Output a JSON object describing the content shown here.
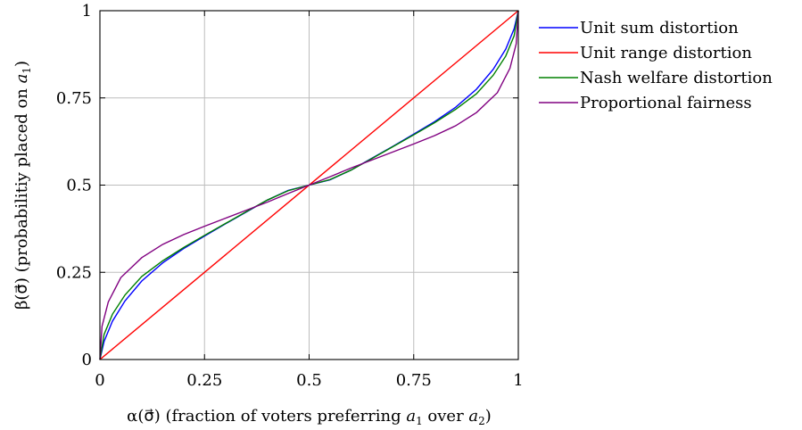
{
  "chart_data": {
    "type": "line",
    "xlabel": {
      "prefix": "α(σ⃗) (fraction of voters preferring ",
      "a1": "a",
      "a1_sub": "1",
      "middle": " over ",
      "a2": "a",
      "a2_sub": "2",
      "suffix": ")"
    },
    "ylabel": {
      "prefix": "β(σ⃗) (probabilitiy placed on ",
      "a1": "a",
      "a1_sub": "1",
      "suffix": ")"
    },
    "xlim": [
      0,
      1
    ],
    "ylim": [
      0,
      1
    ],
    "xticks": [
      0,
      0.25,
      0.5,
      0.75,
      1
    ],
    "yticks": [
      0,
      0.25,
      0.5,
      0.75,
      1
    ],
    "xtick_labels": [
      "0",
      "0.25",
      "0.5",
      "0.75",
      "1"
    ],
    "ytick_labels": [
      "0",
      "0.25",
      "0.5",
      "0.75",
      "1"
    ],
    "grid": true,
    "legend_position": "outside-top-right",
    "series": [
      {
        "name": "Unit sum distortion",
        "color": "#0000ff",
        "x": [
          0,
          0.01,
          0.03,
          0.06,
          0.1,
          0.15,
          0.2,
          0.25,
          0.3,
          0.35,
          0.4,
          0.45,
          0.5,
          0.55,
          0.6,
          0.65,
          0.7,
          0.75,
          0.8,
          0.85,
          0.9,
          0.94,
          0.97,
          0.99,
          1
        ],
        "y": [
          0,
          0.052,
          0.11,
          0.168,
          0.225,
          0.277,
          0.318,
          0.354,
          0.389,
          0.423,
          0.457,
          0.485,
          0.5,
          0.515,
          0.543,
          0.577,
          0.611,
          0.646,
          0.682,
          0.723,
          0.775,
          0.832,
          0.89,
          0.948,
          1
        ]
      },
      {
        "name": "Unit range distortion",
        "color": "#ff0000",
        "x": [
          0,
          1
        ],
        "y": [
          0,
          1
        ]
      },
      {
        "name": "Nash welfare distortion",
        "color": "#008000",
        "x": [
          0,
          0.01,
          0.03,
          0.06,
          0.1,
          0.15,
          0.2,
          0.25,
          0.3,
          0.35,
          0.4,
          0.45,
          0.5,
          0.55,
          0.6,
          0.65,
          0.7,
          0.75,
          0.8,
          0.85,
          0.9,
          0.94,
          0.97,
          0.99,
          1
        ],
        "y": [
          0,
          0.072,
          0.13,
          0.185,
          0.238,
          0.283,
          0.321,
          0.356,
          0.39,
          0.424,
          0.457,
          0.484,
          0.5,
          0.516,
          0.543,
          0.576,
          0.61,
          0.644,
          0.679,
          0.717,
          0.762,
          0.815,
          0.87,
          0.928,
          1
        ]
      },
      {
        "name": "Proportional fairness",
        "color": "#800080",
        "x": [
          0,
          0.005,
          0.02,
          0.05,
          0.1,
          0.15,
          0.2,
          0.25,
          0.3,
          0.35,
          0.4,
          0.45,
          0.5,
          0.55,
          0.6,
          0.65,
          0.7,
          0.75,
          0.8,
          0.85,
          0.9,
          0.95,
          0.98,
          0.995,
          1
        ],
        "y": [
          0,
          0.095,
          0.165,
          0.235,
          0.292,
          0.33,
          0.358,
          0.382,
          0.405,
          0.428,
          0.451,
          0.476,
          0.5,
          0.524,
          0.549,
          0.572,
          0.595,
          0.618,
          0.642,
          0.67,
          0.708,
          0.765,
          0.835,
          0.905,
          1
        ]
      }
    ]
  }
}
